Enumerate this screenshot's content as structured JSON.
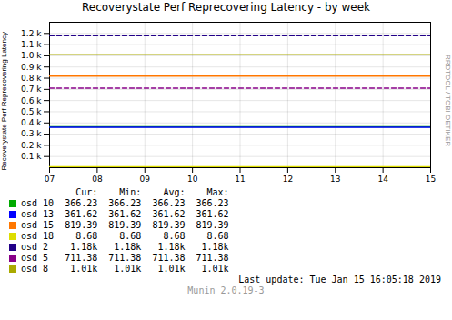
{
  "chart_data": {
    "type": "line",
    "title": "Recoverystate Perf Reprecovering Latency - by week",
    "ylabel": "Recoverystate Perf Reprecovering Latency",
    "x": [
      7,
      15
    ],
    "xlim": [
      7,
      15
    ],
    "xticks": [
      {
        "value": 7,
        "label": "07"
      },
      {
        "value": 8,
        "label": "08"
      },
      {
        "value": 9,
        "label": "09"
      },
      {
        "value": 10,
        "label": "10"
      },
      {
        "value": 11,
        "label": "11"
      },
      {
        "value": 12,
        "label": "12"
      },
      {
        "value": 13,
        "label": "13"
      },
      {
        "value": 14,
        "label": "14"
      },
      {
        "value": 15,
        "label": "15"
      }
    ],
    "ylim": [
      0,
      1300
    ],
    "yticks": [
      {
        "value": 100,
        "label": "0.1 k"
      },
      {
        "value": 200,
        "label": "0.2 k"
      },
      {
        "value": 300,
        "label": "0.3 k"
      },
      {
        "value": 400,
        "label": "0.4 k"
      },
      {
        "value": 500,
        "label": "0.5 k"
      },
      {
        "value": 600,
        "label": "0.6 k"
      },
      {
        "value": 700,
        "label": "0.7 k"
      },
      {
        "value": 800,
        "label": "0.8 k"
      },
      {
        "value": 900,
        "label": "0.9 k"
      },
      {
        "value": 1000,
        "label": "1.0 k"
      },
      {
        "value": 1100,
        "label": "1.1 k"
      },
      {
        "value": 1200,
        "label": "1.2 k"
      }
    ],
    "grid": true,
    "legend": "bottom",
    "stat_headers": [
      "Cur:",
      "Min:",
      "Avg:",
      "Max:"
    ],
    "annotations": [
      "RRDTOOL / TOBI OETIKER",
      "Last update:  Tue Jan 15 16:05:18 2019",
      "Munin 2.0.19-3"
    ],
    "series": [
      {
        "name": "osd 10",
        "color": "#00aa00",
        "line_style": "solid",
        "values": [
          366.23,
          366.23
        ],
        "stat_labels": [
          "366.23",
          "366.23",
          "366.23",
          "366.23"
        ]
      },
      {
        "name": "osd 13",
        "color": "#0000ff",
        "line_style": "solid",
        "values": [
          361.62,
          361.62
        ],
        "stat_labels": [
          "361.62",
          "361.62",
          "361.62",
          "361.62"
        ]
      },
      {
        "name": "osd 15",
        "color": "#ff7700",
        "line_style": "solid",
        "values": [
          819.39,
          819.39
        ],
        "stat_labels": [
          "819.39",
          "819.39",
          "819.39",
          "819.39"
        ]
      },
      {
        "name": "osd 18",
        "color": "#dddd00",
        "line_style": "solid",
        "values": [
          8.68,
          8.68
        ],
        "stat_labels": [
          "8.68",
          "8.68",
          "8.68",
          "8.68"
        ]
      },
      {
        "name": "osd 2",
        "color": "#220088",
        "line_style": "dashed",
        "values": [
          1180.0,
          1180.0
        ],
        "stat_labels": [
          "1.18k",
          "1.18k",
          "1.18k",
          "1.18k"
        ]
      },
      {
        "name": "osd 5",
        "color": "#880088",
        "line_style": "dashed",
        "values": [
          711.38,
          711.38
        ],
        "stat_labels": [
          "711.38",
          "711.38",
          "711.38",
          "711.38"
        ]
      },
      {
        "name": "osd 8",
        "color": "#aaaa00",
        "line_style": "solid",
        "values": [
          1010.0,
          1010.0
        ],
        "stat_labels": [
          "1.01k",
          "1.01k",
          "1.01k",
          "1.01k"
        ]
      }
    ]
  }
}
